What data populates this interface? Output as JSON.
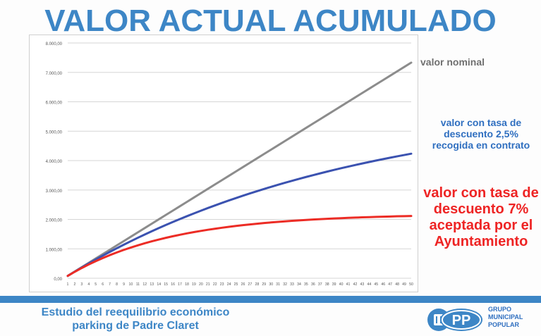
{
  "slide": {
    "title": "VALOR ACTUAL ACUMULADO",
    "footer_line1": "Estudio del reequilibrio económico",
    "footer_line2": "parking de Padre Claret",
    "logo": {
      "acronym": "PP",
      "line1": "GRUPO",
      "line2": "MUNICIPAL",
      "line3": "POPULAR"
    }
  },
  "chart_data": {
    "type": "line",
    "title": "VALOR ACTUAL ACUMULADO",
    "xlabel": "",
    "ylabel": "",
    "x": [
      1,
      2,
      3,
      4,
      5,
      6,
      7,
      8,
      9,
      10,
      11,
      12,
      13,
      14,
      15,
      16,
      17,
      18,
      19,
      20,
      21,
      22,
      23,
      24,
      25,
      26,
      27,
      28,
      29,
      30,
      31,
      32,
      33,
      34,
      35,
      36,
      37,
      38,
      39,
      40,
      41,
      42,
      43,
      44,
      45,
      46,
      47,
      48,
      49,
      50
    ],
    "ylim": [
      0,
      8000
    ],
    "yticks": [
      "0,00",
      "1.000,00",
      "2.000,00",
      "3.000,00",
      "4.000,00",
      "5.000,00",
      "6.000,00",
      "7.000,00",
      "8.000,00"
    ],
    "ytick_values": [
      0,
      1000,
      2000,
      3000,
      4000,
      5000,
      6000,
      7000,
      8000
    ],
    "grid": true,
    "series": [
      {
        "name": "valor nominal",
        "color": "#8c8c8c",
        "first": 80,
        "step": 148,
        "rate": 0
      },
      {
        "name": "valor con tasa de descuento 2,5% recogida en contrato",
        "color": "#3b52b0",
        "first": 80,
        "step": 148,
        "rate": 0.025
      },
      {
        "name": "valor con tasa de descuento 7% aceptada por el Ayuntamiento",
        "color": "#ec2c25",
        "first": 80,
        "step": 148,
        "rate": 0.07
      }
    ],
    "annotations": [
      {
        "text": "valor nominal",
        "color": "#6f6f6f"
      },
      {
        "line1": "valor con tasa de",
        "line2": "descuento 2,5%",
        "line3": "recogida en contrato",
        "color": "#2f6fc0"
      },
      {
        "line1": "valor con tasa de",
        "line2": "descuento 7%",
        "line3": "aceptada por el",
        "line4": "Ayuntamiento",
        "color": "#ee2424"
      }
    ]
  }
}
